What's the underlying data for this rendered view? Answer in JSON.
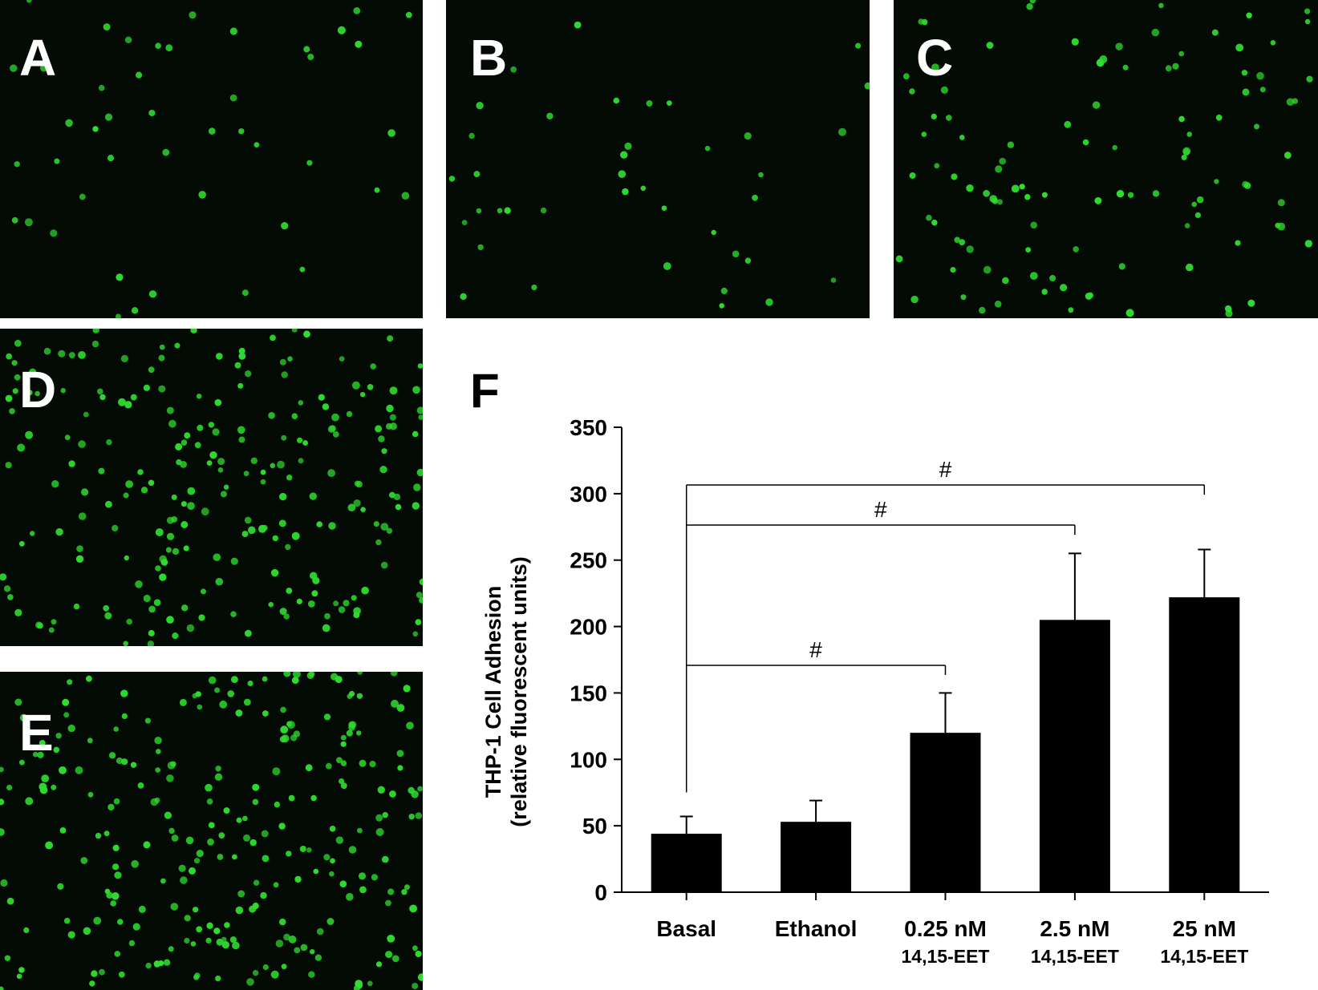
{
  "panels": {
    "a": {
      "label": "A"
    },
    "b": {
      "label": "B"
    },
    "c": {
      "label": "C"
    },
    "d": {
      "label": "D"
    },
    "e": {
      "label": "E"
    },
    "f": {
      "label": "F"
    }
  },
  "colors": {
    "cell": "#2fdc2f",
    "micro_background": "#040a04",
    "bar": "#000000"
  },
  "chart_data": {
    "type": "bar",
    "categories": [
      "Basal",
      "Ethanol",
      "0.25 nM",
      "2.5 nM",
      "25 nM"
    ],
    "category_sublabels": [
      "",
      "",
      "14,15-EET",
      "14,15-EET",
      "14,15-EET"
    ],
    "values": [
      44,
      53,
      120,
      205,
      222
    ],
    "errors": [
      13,
      16,
      30,
      50,
      36
    ],
    "ylabel_line1": "THP-1 Cell Adhesion",
    "ylabel_line2": "(relative fluorescent units)",
    "ylim": [
      0,
      350
    ],
    "yticks": [
      0,
      50,
      100,
      150,
      200,
      250,
      300,
      350
    ],
    "grid": false,
    "significance": [
      {
        "from": "Basal",
        "to": "25 nM",
        "label": "#"
      },
      {
        "from": "Basal",
        "to": "2.5 nM",
        "label": "#"
      },
      {
        "from": "Basal",
        "to": "0.25 nM",
        "label": "#"
      }
    ]
  }
}
